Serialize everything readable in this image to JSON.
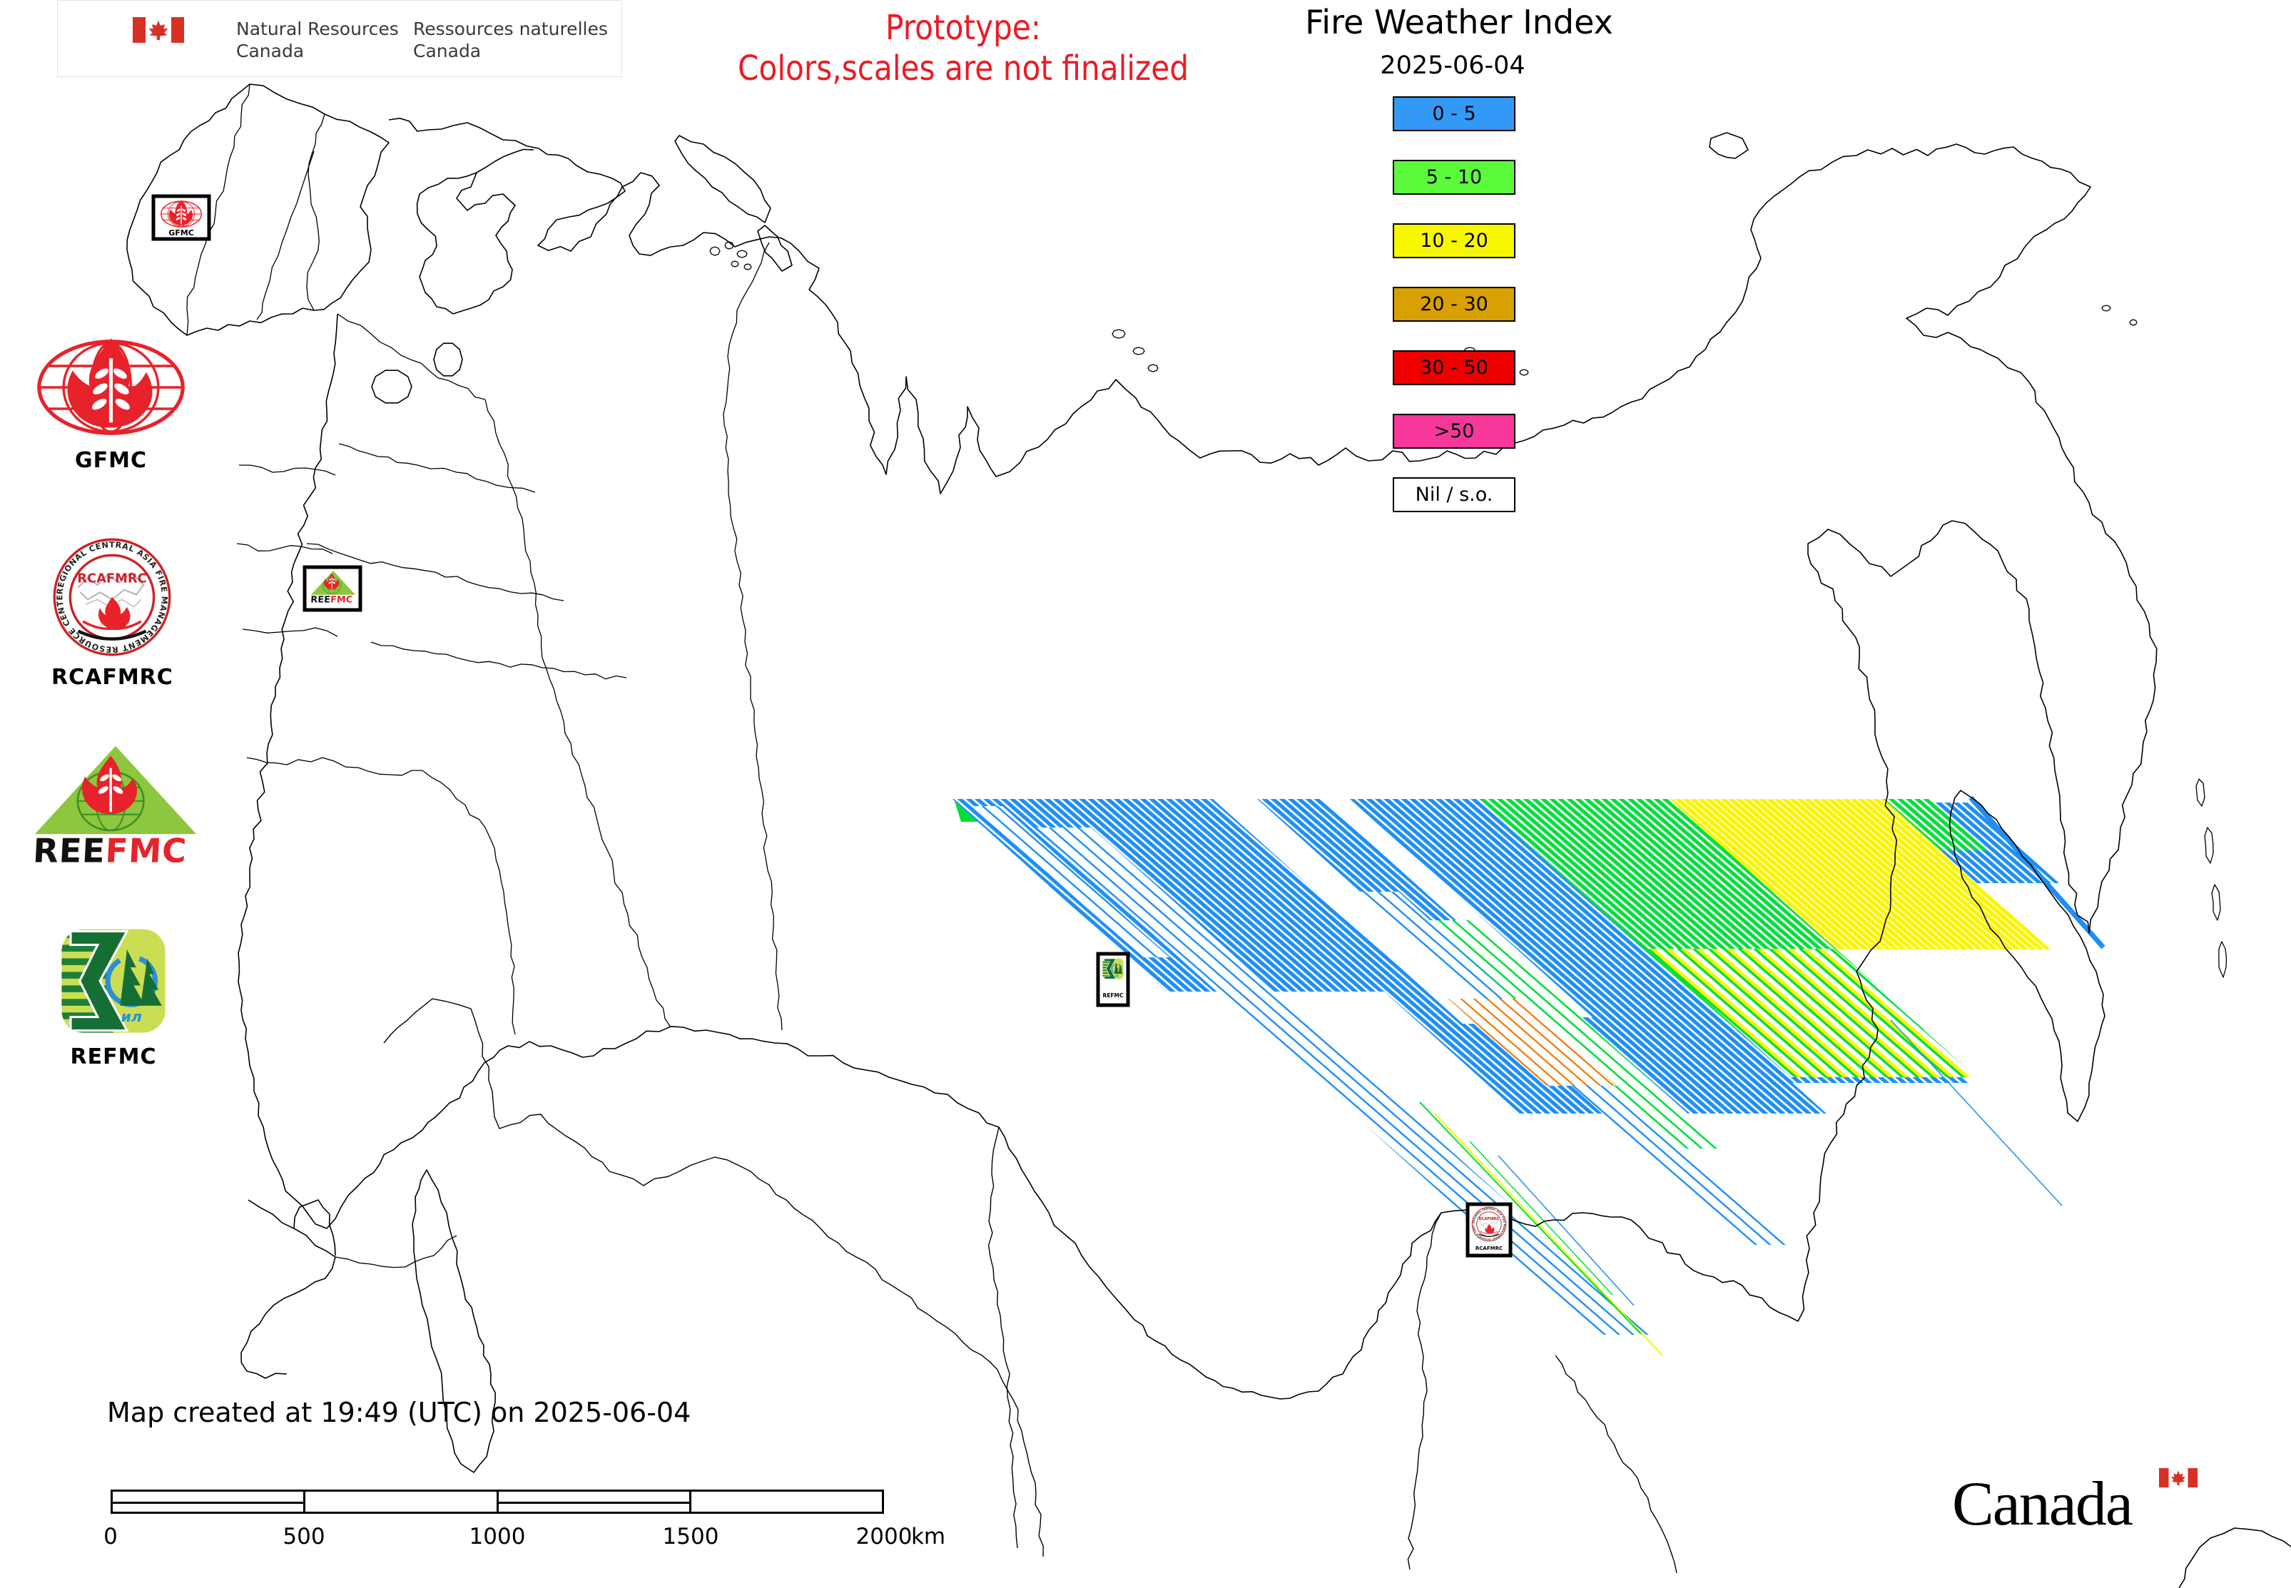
{
  "header": {
    "signature": {
      "en_line1": "Natural Resources",
      "en_line2": "Canada",
      "fr_line1": "Ressources naturelles",
      "fr_line2": "Canada"
    },
    "prototype_line1": "Prototype:",
    "prototype_line2": "Colors,scales are not finalized",
    "title": "Fire Weather Index",
    "date": "2025-06-04"
  },
  "legend": {
    "items": [
      {
        "label": "0 - 5",
        "color": "#3399F6",
        "swatch_style": "background:#3399F6"
      },
      {
        "label": "5 - 10",
        "color": "#5BFB3C",
        "swatch_style": "background:#5BFB3C"
      },
      {
        "label": "10 - 20",
        "color": "#F7F800",
        "swatch_style": "background:#F7F800"
      },
      {
        "label": "20 - 30",
        "color": "#D8A000",
        "swatch_style": "background:#D8A000"
      },
      {
        "label": "30 - 50",
        "color": "#EE0000",
        "swatch_style": "background:#EE0000"
      },
      {
        "label": ">50",
        "color": "#F8379B",
        "swatch_style": "background:#F8379B"
      },
      {
        "label": "Nil / s.o.",
        "color": "#FFFFFF",
        "swatch_style": "background:#FFFFFF"
      }
    ]
  },
  "logos": {
    "gfmc_label": "GFMC",
    "rcafmrc_label": "RCAFMRC",
    "rcafmrc_ring_text": "REGIONAL CENTRAL ASIA FIRE MANAGEMENT RESOURCE CENTER",
    "rcafmrc_inner_text": "RCAFMRC",
    "reefmc_black": "REE",
    "reefmc_red": "FMC",
    "refmc_label": "REFMC"
  },
  "markers": {
    "gfmc": "GFMC",
    "refmc": "REFMC",
    "rcafmrc": "RCAFMRC"
  },
  "footer": {
    "created_text": "Map created at 19:49 (UTC) on 2025-06-04",
    "wordmark": "Canada"
  },
  "scalebar": {
    "ticks": [
      "0",
      "500",
      "1000",
      "1500",
      "2000"
    ],
    "unit": "km"
  },
  "colors": {
    "prototype_red": "#EC1B24",
    "data_blue": "#1E8FF5",
    "data_green": "#00DF3B",
    "data_yellow": "#FCF500",
    "data_orange": "#F07800",
    "logo_red": "#E8222A",
    "flag_red": "#D93025"
  }
}
